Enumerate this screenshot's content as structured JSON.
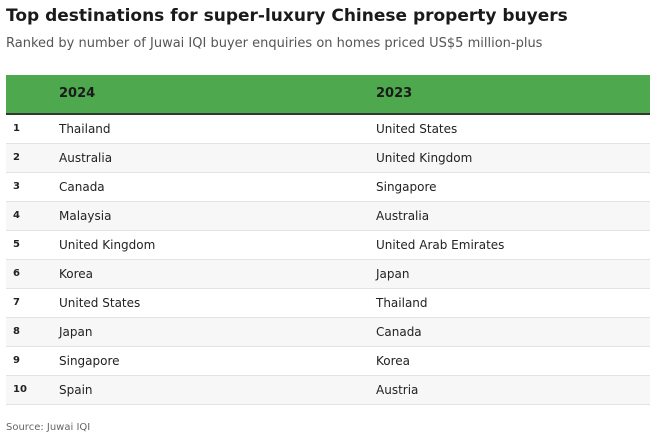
{
  "title": "Top destinations for super-luxury Chinese property buyers",
  "subtitle": "Ranked by number of Juwai IQI buyer enquiries on homes priced US$5 million-plus",
  "source": "Source: Juwai IQI",
  "colors": {
    "header_bg": "#4da84e",
    "header_rule": "#2f3a2f",
    "stripe": "#f7f7f7"
  },
  "chart_data": {
    "type": "table",
    "columns": [
      "",
      "2024",
      "2023"
    ],
    "rows": [
      {
        "rank": "1",
        "y2024": "Thailand",
        "y2023": "United States"
      },
      {
        "rank": "2",
        "y2024": "Australia",
        "y2023": "United Kingdom"
      },
      {
        "rank": "3",
        "y2024": "Canada",
        "y2023": "Singapore"
      },
      {
        "rank": "4",
        "y2024": "Malaysia",
        "y2023": "Australia"
      },
      {
        "rank": "5",
        "y2024": "United Kingdom",
        "y2023": "United Arab Emirates"
      },
      {
        "rank": "6",
        "y2024": "Korea",
        "y2023": "Japan"
      },
      {
        "rank": "7",
        "y2024": "United States",
        "y2023": "Thailand"
      },
      {
        "rank": "8",
        "y2024": "Japan",
        "y2023": "Canada"
      },
      {
        "rank": "9",
        "y2024": "Singapore",
        "y2023": "Korea"
      },
      {
        "rank": "10",
        "y2024": "Spain",
        "y2023": "Austria"
      }
    ]
  }
}
